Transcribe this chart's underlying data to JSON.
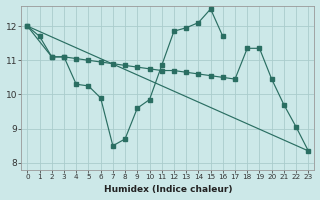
{
  "xlabel": "Humidex (Indice chaleur)",
  "bg_color": "#cce8e8",
  "grid_color": "#aacccc",
  "line_color": "#2a6e62",
  "xlim": [
    -0.5,
    23.5
  ],
  "ylim": [
    7.8,
    12.6
  ],
  "xticks": [
    0,
    1,
    2,
    3,
    4,
    5,
    6,
    7,
    8,
    9,
    10,
    11,
    12,
    13,
    14,
    15,
    16,
    17,
    18,
    19,
    20,
    21,
    22,
    23
  ],
  "yticks": [
    8,
    9,
    10,
    11,
    12
  ],
  "line_zigzag": {
    "x": [
      0,
      1,
      2,
      3,
      4,
      5,
      6,
      7,
      8,
      9,
      10,
      11,
      12,
      13,
      14,
      15,
      16
    ],
    "y": [
      12.0,
      11.7,
      11.1,
      11.1,
      10.3,
      10.25,
      9.9,
      8.5,
      8.7,
      9.6,
      9.85,
      10.85,
      11.85,
      11.95,
      12.1,
      12.5,
      11.7
    ]
  },
  "line_flat": {
    "x": [
      0,
      2,
      3,
      4,
      5,
      6,
      7,
      8,
      9,
      10,
      11,
      12,
      13,
      14,
      15,
      16,
      17,
      18,
      19,
      20,
      21,
      22,
      23
    ],
    "y": [
      12.0,
      11.1,
      11.1,
      11.05,
      11.0,
      10.95,
      10.9,
      10.85,
      10.8,
      10.75,
      10.7,
      10.7,
      10.65,
      10.6,
      10.55,
      10.5,
      10.45,
      11.35,
      11.35,
      10.45,
      9.7,
      9.05,
      8.35
    ]
  },
  "line_diag": {
    "x": [
      0,
      23
    ],
    "y": [
      12.0,
      8.35
    ]
  }
}
